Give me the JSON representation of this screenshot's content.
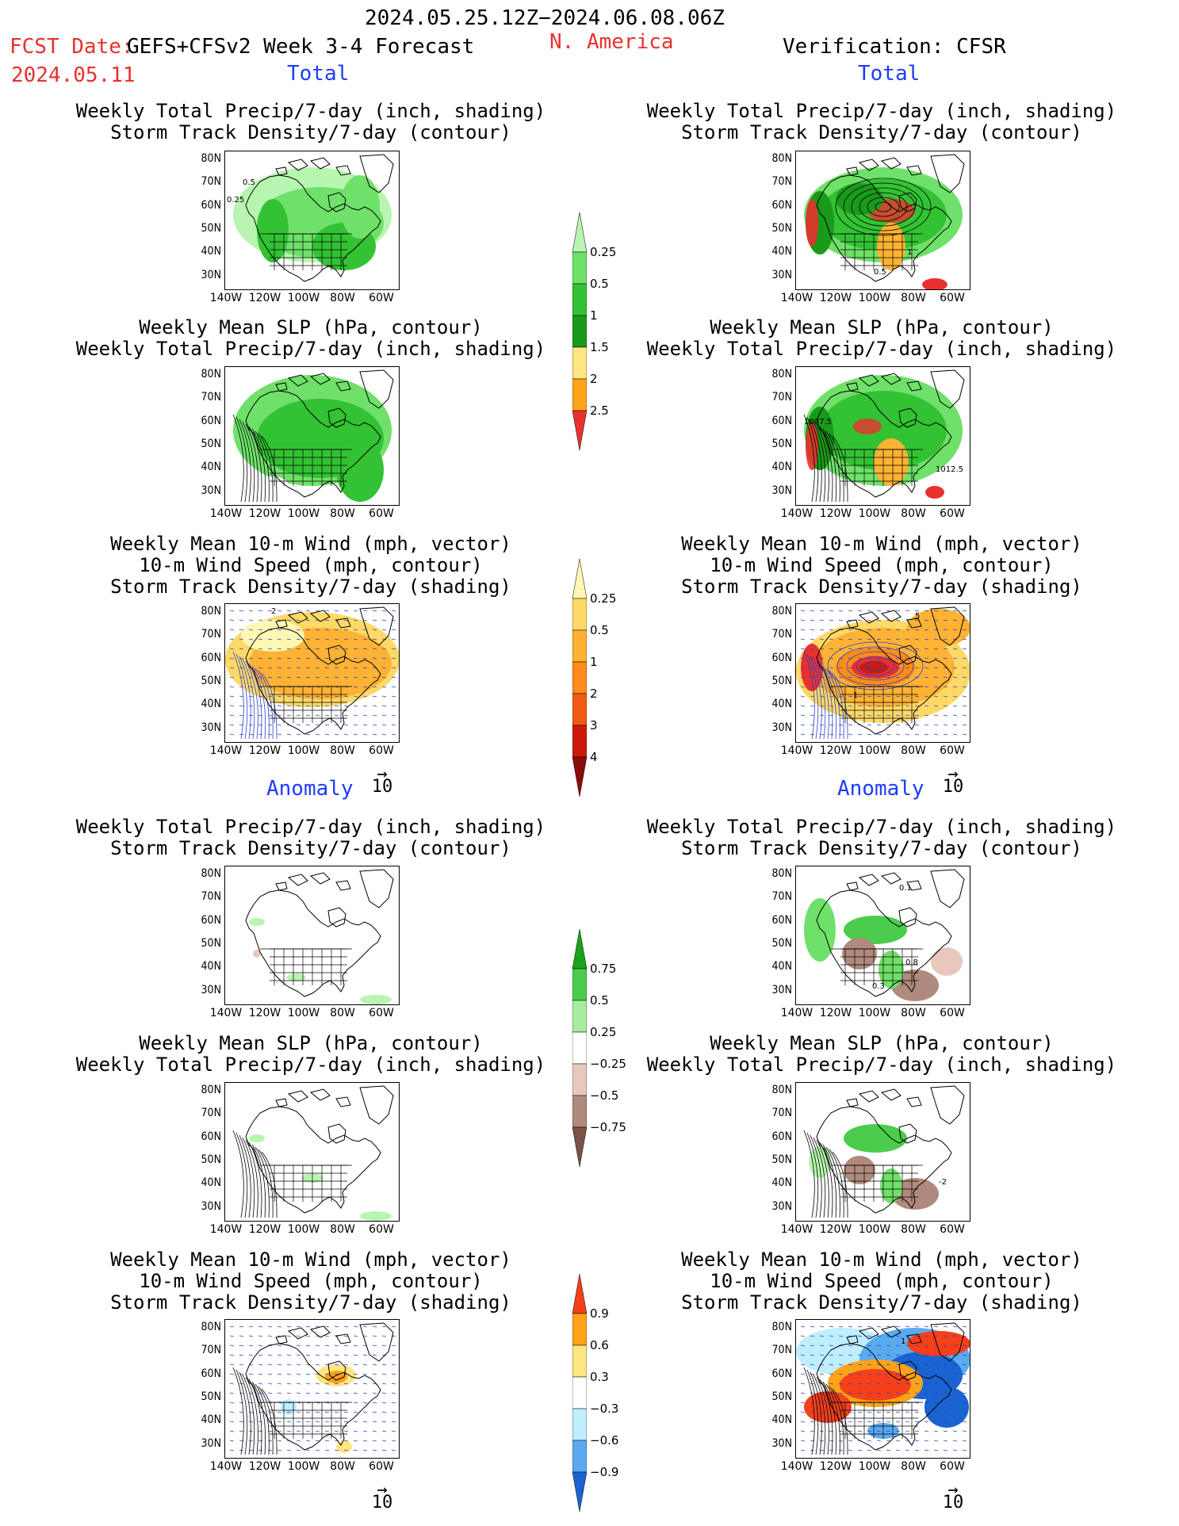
{
  "header": {
    "period": "2024.05.25.12Z−2024.06.08.06Z",
    "fcst_label": "FCST Date:",
    "fcst_date": "2024.05.11",
    "model": "GEFS+CFSv2 Week 3-4 Forecast",
    "region": "N. America",
    "verification": "Verification: CFSR"
  },
  "sections": {
    "total": "Total",
    "anomaly": "Anomaly"
  },
  "titles": {
    "precip_storm": "Weekly Total Precip/7-day (inch, shading)\nStorm Track Density/7-day (contour)",
    "slp_precip": "Weekly Mean SLP (hPa, contour)\nWeekly Total Precip/7-day (inch, shading)",
    "wind_storm": "Weekly Mean 10-m Wind (mph, vector)\n10-m Wind Speed (mph, contour)\nStorm Track Density/7-day (shading)"
  },
  "axes": {
    "lat_labels": [
      "80N",
      "70N",
      "60N",
      "50N",
      "40N",
      "30N"
    ],
    "lon_labels": [
      "140W",
      "120W",
      "100W",
      "80W",
      "60W"
    ]
  },
  "vector_ref": "10",
  "colorbars": {
    "precip_total": {
      "levels": [
        "0.25",
        "0.5",
        "1",
        "1.5",
        "2",
        "2.5"
      ],
      "colors": [
        "#b8f5b0",
        "#6fe06a",
        "#33c233",
        "#1a9a1a",
        "#ffe680",
        "#ffa31a",
        "#e8312e"
      ]
    },
    "storm_total": {
      "levels": [
        "0.25",
        "0.5",
        "1",
        "2",
        "3",
        "4"
      ],
      "colors": [
        "#fff7b3",
        "#ffd966",
        "#ffb233",
        "#ff8c1a",
        "#f05a14",
        "#cc1a0a",
        "#8c0a0a"
      ]
    },
    "precip_anom": {
      "levels": [
        "0.75",
        "0.5",
        "0.25",
        "−0.25",
        "−0.5",
        "−0.75"
      ],
      "colors": [
        "#1aa31a",
        "#4ccc4c",
        "#a8eca0",
        "#ffffff",
        "#e8c8bc",
        "#b08a7c",
        "#7a5246"
      ]
    },
    "storm_anom": {
      "levels": [
        "0.9",
        "0.6",
        "0.3",
        "−0.3",
        "−0.6",
        "−0.9"
      ],
      "colors": [
        "#f5401a",
        "#ffa31a",
        "#ffe680",
        "#ffffff",
        "#bfeeff",
        "#5aaaf0",
        "#1a64d2"
      ]
    }
  },
  "map_labels": {
    "p1": [
      "0.5",
      "0.25"
    ],
    "p2": [
      "1",
      "0.5"
    ],
    "p4": [
      "1007.5",
      "1012.5"
    ],
    "p5": [
      "2"
    ],
    "p6": [
      "5",
      "1"
    ],
    "p8": [
      "0.1",
      "0.8",
      "0.3"
    ],
    "p10": [
      "-2"
    ],
    "p12": [
      "1"
    ]
  }
}
